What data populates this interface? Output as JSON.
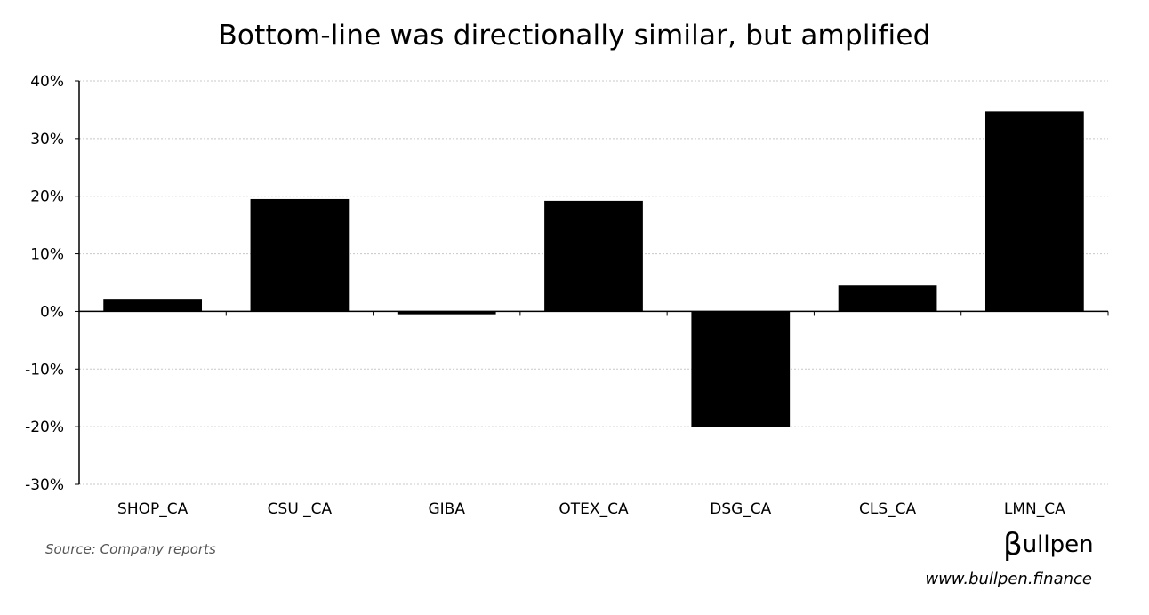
{
  "chart_data": {
    "type": "bar",
    "title": "Bottom-line was directionally similar, but amplified",
    "xlabel": "",
    "ylabel": "",
    "categories": [
      "SHOP_CA",
      "CSU _CA",
      "GIBA",
      "OTEX_CA",
      "DSG_CA",
      "CLS_CA",
      "LMN_CA"
    ],
    "values": [
      2.2,
      19.5,
      -0.5,
      19.2,
      -20.0,
      4.5,
      34.7
    ],
    "ylim": [
      -30,
      40
    ],
    "yticks": [
      40,
      30,
      20,
      10,
      0,
      -10,
      -20,
      -30
    ],
    "ytick_labels": [
      "40%",
      "30%",
      "20%",
      "10%",
      "0%",
      "-10%",
      "-20%",
      "-30%"
    ],
    "grid": true,
    "bar_color": "#000000",
    "grid_color": "#c8c8c8"
  },
  "footer": {
    "source": "Source: Company reports",
    "logo_beta": "β",
    "logo_text": "ullpen",
    "url": "www.bullpen.finance"
  }
}
